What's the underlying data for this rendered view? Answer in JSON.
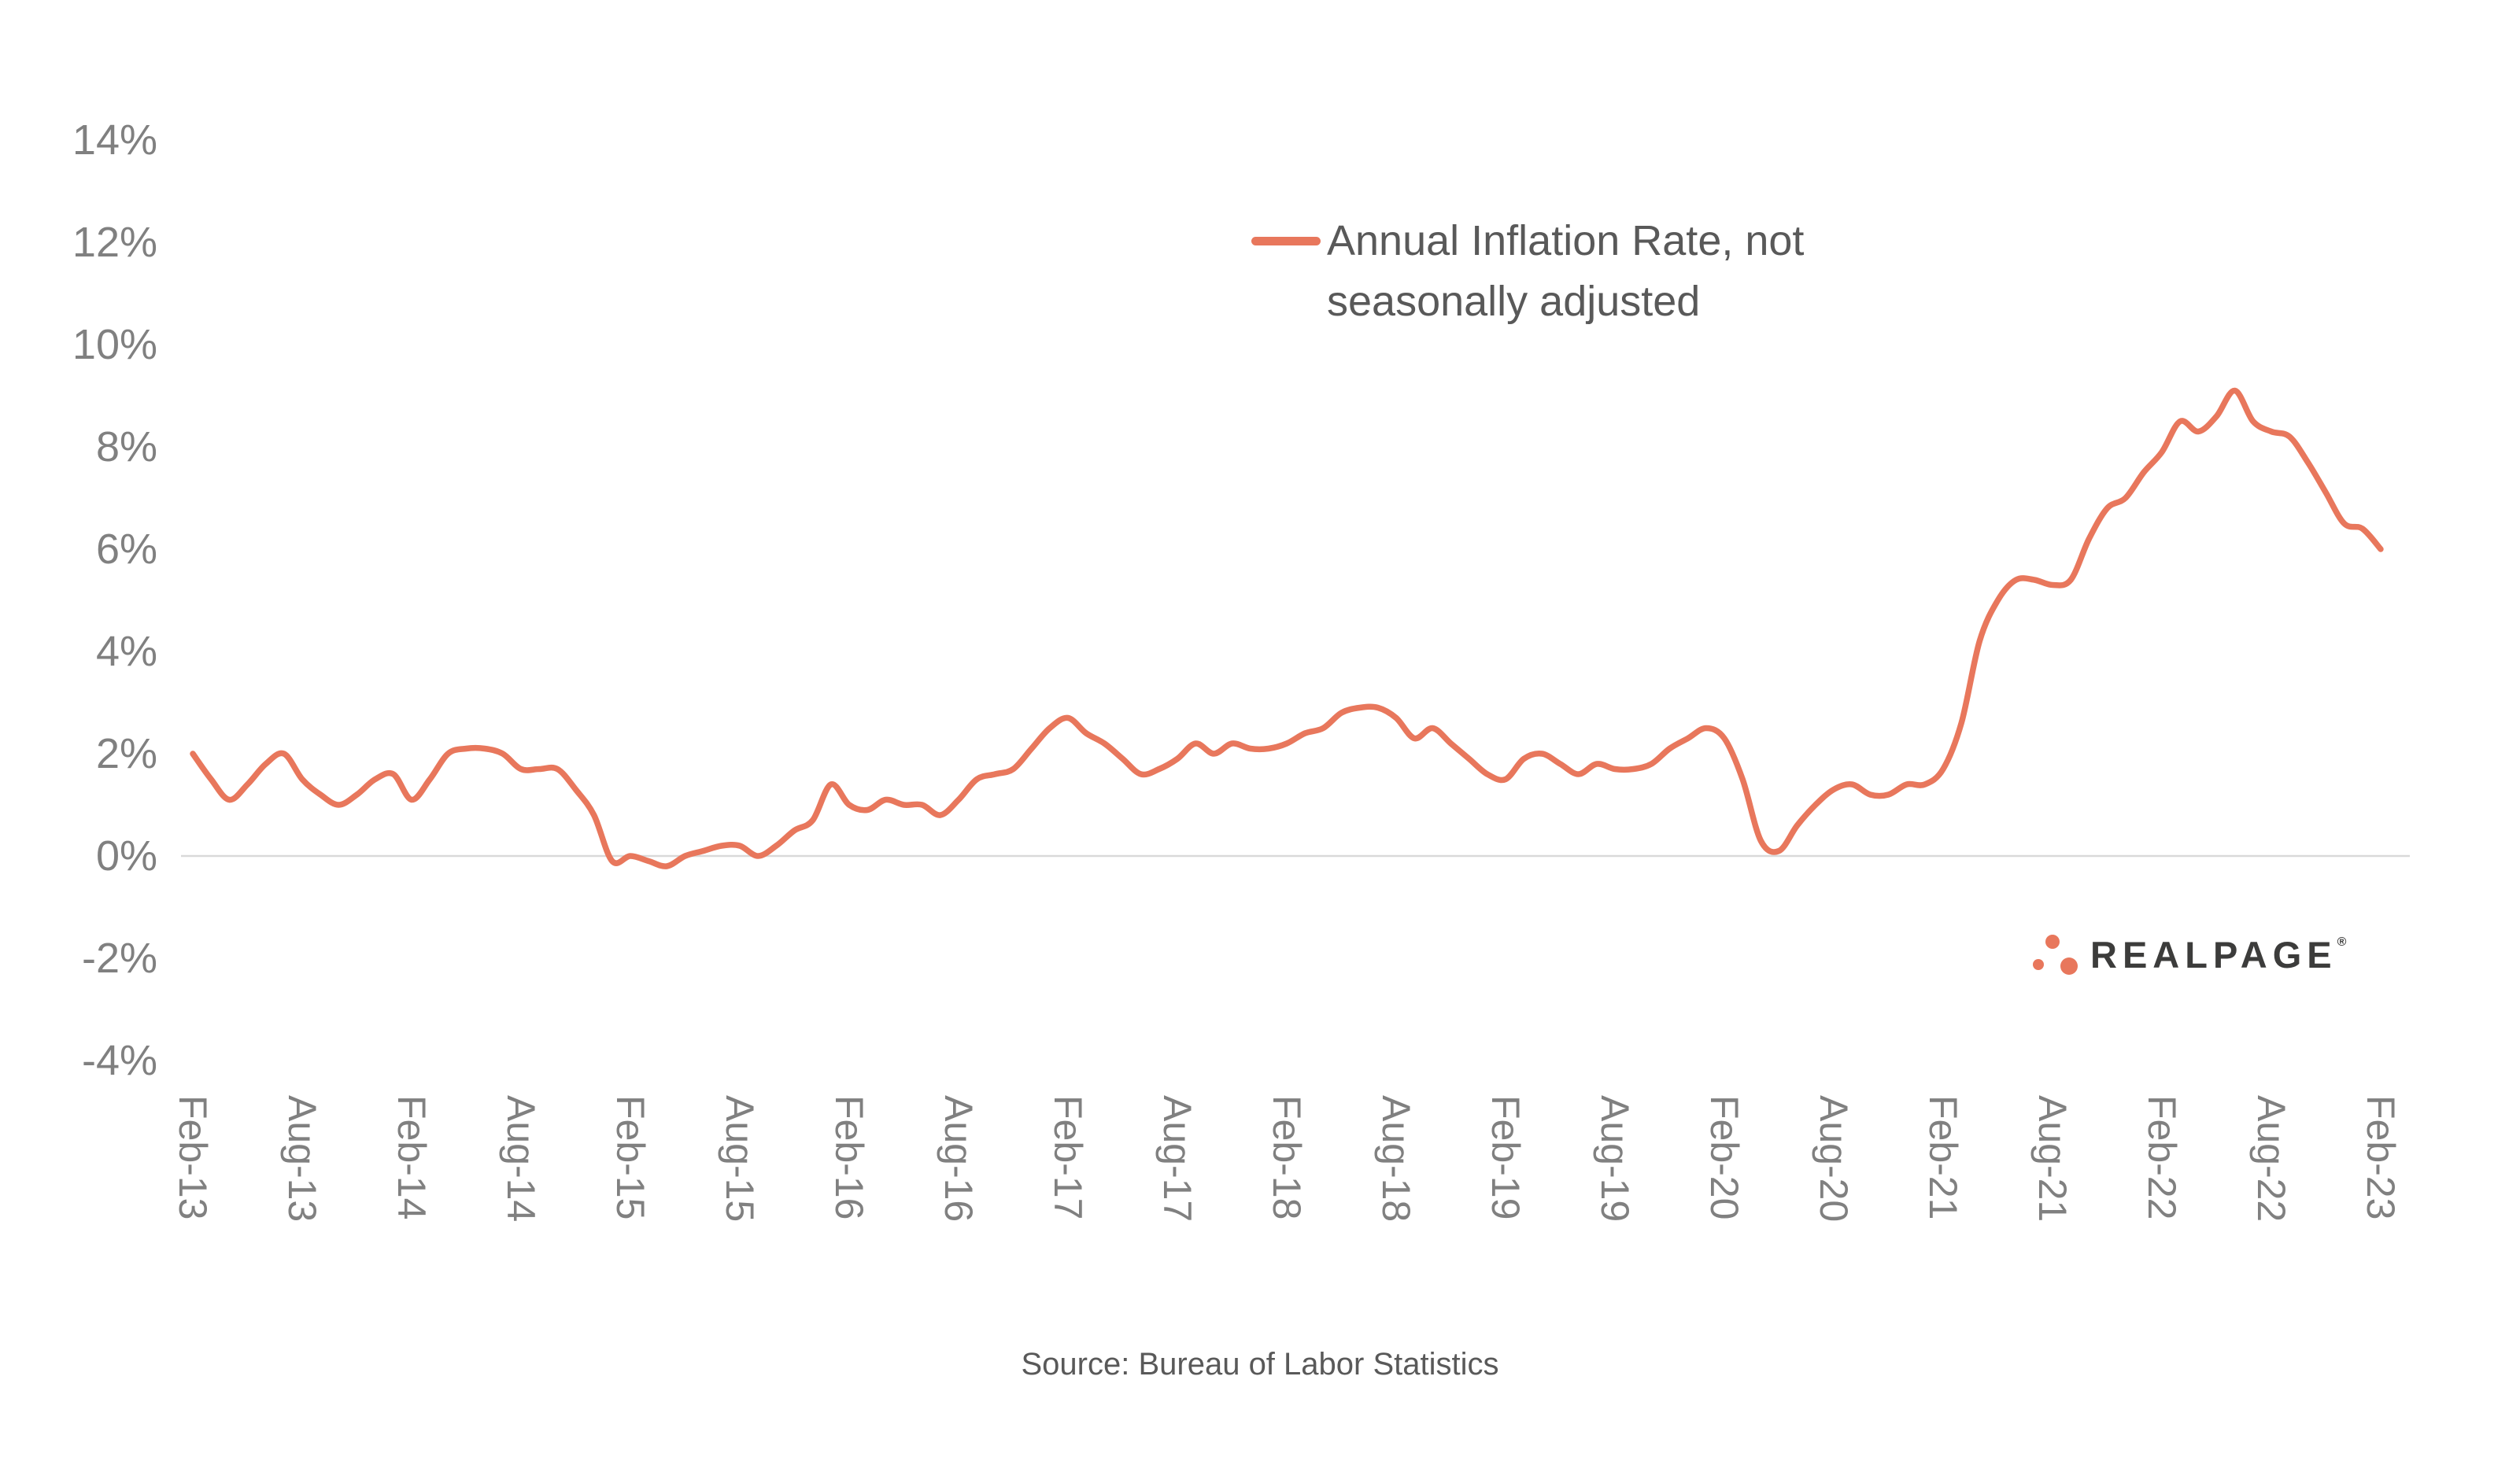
{
  "colors": {
    "accent": "#e8775c",
    "axis_text": "#808080",
    "legend_text": "#595959",
    "gridline": "#d9d9d9",
    "logo_text": "#3c3c3b"
  },
  "legend": {
    "line1": "Annual Inflation Rate, not",
    "line2": "seasonally adjusted"
  },
  "logo": {
    "text": "REALPAGE",
    "registered": "®"
  },
  "source": "Source: Bureau of Labor Statistics",
  "y_axis": {
    "ticks": [
      "14%",
      "12%",
      "10%",
      "8%",
      "6%",
      "4%",
      "2%",
      "0%",
      "-2%",
      "-4%"
    ],
    "max": 14,
    "min": -4,
    "step": 2
  },
  "x_axis": {
    "ticks": [
      "Feb-13",
      "Aug-13",
      "Feb-14",
      "Aug-14",
      "Feb-15",
      "Aug-15",
      "Feb-16",
      "Aug-16",
      "Feb-17",
      "Aug-17",
      "Feb-18",
      "Aug-18",
      "Feb-19",
      "Aug-19",
      "Feb-20",
      "Aug-20",
      "Feb-21",
      "Aug-21",
      "Feb-22",
      "Aug-22",
      "Feb-23"
    ],
    "tick_every_n_months": 6
  },
  "chart_data": {
    "type": "line",
    "series_name": "Annual Inflation Rate, not seasonally adjusted",
    "ylim": [
      -4,
      14
    ],
    "y_tick_step": 2,
    "grid": "horizontal baseline at 0% only",
    "legend_position": "top-center",
    "line_color": "#e8775c",
    "x": [
      "Feb-13",
      "Mar-13",
      "Apr-13",
      "May-13",
      "Jun-13",
      "Jul-13",
      "Aug-13",
      "Sep-13",
      "Oct-13",
      "Nov-13",
      "Dec-13",
      "Jan-14",
      "Feb-14",
      "Mar-14",
      "Apr-14",
      "May-14",
      "Jun-14",
      "Jul-14",
      "Aug-14",
      "Sep-14",
      "Oct-14",
      "Nov-14",
      "Dec-14",
      "Jan-15",
      "Feb-15",
      "Mar-15",
      "Apr-15",
      "May-15",
      "Jun-15",
      "Jul-15",
      "Aug-15",
      "Sep-15",
      "Oct-15",
      "Nov-15",
      "Dec-15",
      "Jan-16",
      "Feb-16",
      "Mar-16",
      "Apr-16",
      "May-16",
      "Jun-16",
      "Jul-16",
      "Aug-16",
      "Sep-16",
      "Oct-16",
      "Nov-16",
      "Dec-16",
      "Jan-17",
      "Feb-17",
      "Mar-17",
      "Apr-17",
      "May-17",
      "Jun-17",
      "Jul-17",
      "Aug-17",
      "Sep-17",
      "Oct-17",
      "Nov-17",
      "Dec-17",
      "Jan-18",
      "Feb-18",
      "Mar-18",
      "Apr-18",
      "May-18",
      "Jun-18",
      "Jul-18",
      "Aug-18",
      "Sep-18",
      "Oct-18",
      "Nov-18",
      "Dec-18",
      "Jan-19",
      "Feb-19",
      "Mar-19",
      "Apr-19",
      "May-19",
      "Jun-19",
      "Jul-19",
      "Aug-19",
      "Sep-19",
      "Oct-19",
      "Nov-19",
      "Dec-19",
      "Jan-20",
      "Feb-20",
      "Mar-20",
      "Apr-20",
      "May-20",
      "Jun-20",
      "Jul-20",
      "Aug-20",
      "Sep-20",
      "Oct-20",
      "Nov-20",
      "Dec-20",
      "Jan-21",
      "Feb-21",
      "Mar-21",
      "Apr-21",
      "May-21",
      "Jun-21",
      "Jul-21",
      "Aug-21",
      "Sep-21",
      "Oct-21",
      "Nov-21",
      "Dec-21",
      "Jan-22",
      "Feb-22",
      "Mar-22",
      "Apr-22",
      "May-22",
      "Jun-22",
      "Jul-22",
      "Aug-22",
      "Sep-22",
      "Oct-22",
      "Nov-22",
      "Dec-22",
      "Jan-23",
      "Feb-23"
    ],
    "values": [
      2.0,
      1.5,
      1.1,
      1.4,
      1.8,
      2.0,
      1.5,
      1.2,
      1.0,
      1.2,
      1.5,
      1.6,
      1.1,
      1.5,
      2.0,
      2.1,
      2.1,
      2.0,
      1.7,
      1.7,
      1.7,
      1.3,
      0.8,
      -0.1,
      0.0,
      -0.1,
      -0.2,
      0.0,
      0.1,
      0.2,
      0.2,
      0.0,
      0.2,
      0.5,
      0.7,
      1.4,
      1.0,
      0.9,
      1.1,
      1.0,
      1.0,
      0.8,
      1.1,
      1.5,
      1.6,
      1.7,
      2.1,
      2.5,
      2.7,
      2.4,
      2.2,
      1.9,
      1.6,
      1.7,
      1.9,
      2.2,
      2.0,
      2.2,
      2.1,
      2.1,
      2.2,
      2.4,
      2.5,
      2.8,
      2.9,
      2.9,
      2.7,
      2.3,
      2.5,
      2.2,
      1.9,
      1.6,
      1.5,
      1.9,
      2.0,
      1.8,
      1.6,
      1.8,
      1.7,
      1.7,
      1.8,
      2.1,
      2.3,
      2.5,
      2.3,
      1.5,
      0.3,
      0.1,
      0.6,
      1.0,
      1.3,
      1.4,
      1.2,
      1.2,
      1.4,
      1.4,
      1.7,
      2.6,
      4.2,
      5.0,
      5.4,
      5.4,
      5.3,
      5.4,
      6.2,
      6.8,
      7.0,
      7.5,
      7.9,
      8.5,
      8.3,
      8.6,
      9.1,
      8.5,
      8.3,
      8.2,
      7.7,
      7.1,
      6.5,
      6.4,
      6.0
    ]
  }
}
